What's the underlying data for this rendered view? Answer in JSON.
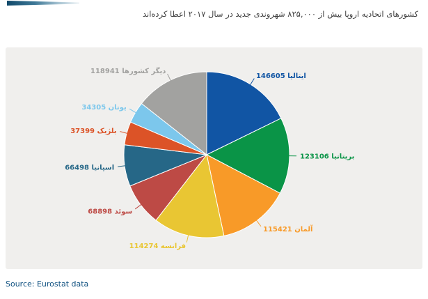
{
  "header": {
    "title": "کشورهای اتحادیه اروپا بیش از ۸۲۵,۰۰۰ شهروندی جدید در سال ۲۰۱۷ اعطا کرده‌اند"
  },
  "footer": {
    "source": "Source: Eurostat data"
  },
  "chart_data": {
    "type": "pie",
    "title": "کشورهای اتحادیه اروپا بیش از ۸۲۵,۰۰۰ شهروندی جدید در سال ۲۰۱۷ اعطا کرده‌اند",
    "source": "Source: Eurostat data",
    "direction": "clockwise",
    "start_angle_deg": 0,
    "legend": "none",
    "labels_layout": "outside with short colored connectors, value then country name (RTL)",
    "label_format": "{value} {name}",
    "panel_background": "#f0efed",
    "slices": [
      {
        "name": "ایتالیا",
        "value": 146605,
        "color": "#1155a4"
      },
      {
        "name": "بریتانیا",
        "value": 123106,
        "color": "#0a9447"
      },
      {
        "name": "آلمان",
        "value": 115421,
        "color": "#f89a28"
      },
      {
        "name": "فرانسه",
        "value": 114274,
        "color": "#e9c633"
      },
      {
        "name": "سوئد",
        "value": 68898,
        "color": "#bd4a45"
      },
      {
        "name": "اسپانیا",
        "value": 66498,
        "color": "#266787"
      },
      {
        "name": "بلژیک",
        "value": 37399,
        "color": "#dc5327"
      },
      {
        "name": "یونان",
        "value": 34305,
        "color": "#7cc7ec"
      },
      {
        "name": "دیگر کشورها",
        "value": 118941,
        "color": "#a2a2a0"
      }
    ]
  }
}
